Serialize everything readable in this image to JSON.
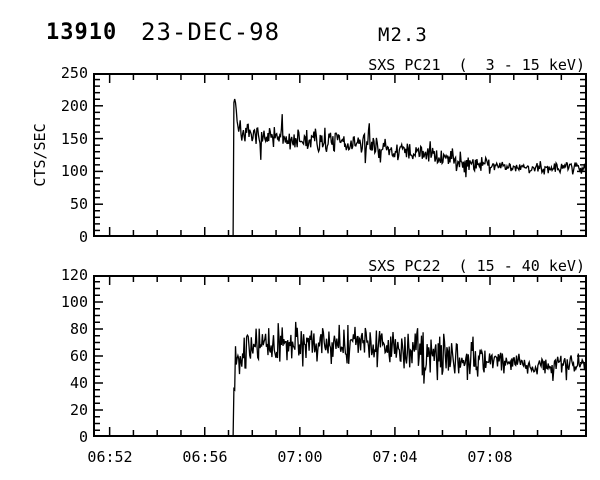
{
  "header": {
    "event_id": "13910",
    "date": "23-DEC-98",
    "flare_class": "M2.3"
  },
  "chart_data": [
    {
      "type": "line",
      "title": "SXS PC21  (  3 - 15 keV)",
      "ylabel": "CTS/SEC",
      "xlabel": "",
      "x_is_time": true,
      "xlim_minutes": [
        411.3,
        432.08
      ],
      "ylim": [
        0,
        250
      ],
      "x_major_ticks_minutes": [
        412,
        416,
        420,
        424,
        428,
        432
      ],
      "x_tick_labels": [
        "06:52",
        "06:56",
        "07:00",
        "07:04",
        "07:08",
        ""
      ],
      "x_minor_step_minutes": 1,
      "y_major_step": 50,
      "y_minor_step": 10,
      "y_tick_labels": [
        "250",
        "200",
        "150",
        "100",
        "50",
        "0"
      ],
      "show_x_labels": false,
      "grid": false,
      "legend": "none",
      "line_color": "#000000",
      "series": {
        "name": "SXS PC21 counts",
        "units": "counts/sec",
        "pre_onset_value": 0,
        "onset_minute": 417.2,
        "onset_time": "06:57:12",
        "peak_value": 212,
        "sample_step_minutes": 0.0333,
        "envelope": [
          [
            417.2,
            212
          ],
          [
            417.27,
            212
          ],
          [
            417.4,
            170
          ],
          [
            417.7,
            156
          ],
          [
            418.5,
            152
          ],
          [
            420,
            148
          ],
          [
            421.5,
            145
          ],
          [
            423,
            139
          ],
          [
            424,
            132
          ],
          [
            425,
            127
          ],
          [
            426,
            122
          ],
          [
            427,
            115
          ],
          [
            427.8,
            111
          ],
          [
            429,
            107
          ],
          [
            430,
            104
          ],
          [
            431,
            107
          ],
          [
            432.08,
            106
          ]
        ],
        "noise_sigma": [
          [
            411.3,
            8
          ],
          [
            427.8,
            8
          ],
          [
            428.1,
            4
          ],
          [
            432.08,
            4
          ]
        ],
        "spike_probability": 0.05,
        "spike_factor": 1.9,
        "seed": 7
      }
    },
    {
      "type": "line",
      "title": "SXS PC22  ( 15 - 40 keV)",
      "ylabel": "",
      "xlabel": "",
      "x_is_time": true,
      "xlim_minutes": [
        411.3,
        432.08
      ],
      "ylim": [
        0,
        120
      ],
      "x_major_ticks_minutes": [
        412,
        416,
        420,
        424,
        428,
        432
      ],
      "x_tick_labels": [
        "06:52",
        "06:56",
        "07:00",
        "07:04",
        "07:08",
        ""
      ],
      "x_minor_step_minutes": 1,
      "y_major_step": 20,
      "y_minor_step": 5,
      "y_tick_labels": [
        "120",
        "100",
        "80",
        "60",
        "40",
        "20",
        "0"
      ],
      "show_x_labels": true,
      "grid": false,
      "legend": "none",
      "line_color": "#000000",
      "series": {
        "name": "SXS PC22 counts",
        "units": "counts/sec",
        "pre_onset_value": 0,
        "onset_minute": 417.2,
        "onset_time": "06:57:12",
        "peak_value": 72,
        "sample_step_minutes": 0.0333,
        "envelope": [
          [
            417.2,
            45
          ],
          [
            417.3,
            60
          ],
          [
            417.6,
            64
          ],
          [
            418,
            66
          ],
          [
            419,
            68
          ],
          [
            420,
            70
          ],
          [
            421,
            70
          ],
          [
            422,
            69
          ],
          [
            423,
            67
          ],
          [
            424,
            65
          ],
          [
            425,
            63
          ],
          [
            426,
            61
          ],
          [
            427,
            59
          ],
          [
            427.8,
            58
          ],
          [
            429,
            55
          ],
          [
            430,
            53
          ],
          [
            431,
            54
          ],
          [
            432.08,
            53
          ]
        ],
        "noise_sigma": [
          [
            411.3,
            7
          ],
          [
            427.8,
            7
          ],
          [
            428.1,
            3.5
          ],
          [
            432.08,
            3.5
          ]
        ],
        "spike_probability": 0.05,
        "spike_factor": 1.9,
        "seed": 13
      }
    }
  ]
}
